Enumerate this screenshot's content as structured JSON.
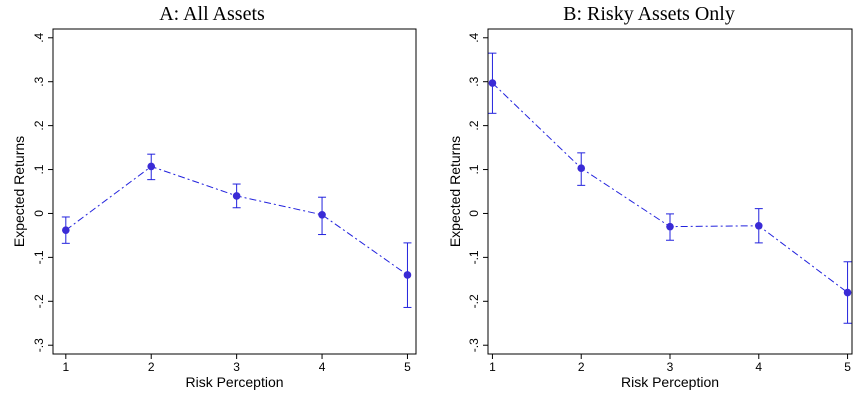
{
  "chart_data": [
    {
      "type": "line",
      "title": "A: All Assets",
      "xlabel": "Risk Perception",
      "ylabel": "Expected Returns",
      "x": [
        1,
        2,
        3,
        4,
        5
      ],
      "xticks": [
        "1",
        "2",
        "3",
        "4",
        "5"
      ],
      "yticks": [
        -0.3,
        -0.2,
        -0.1,
        0,
        0.1,
        0.2,
        0.3,
        0.4
      ],
      "ytick_labels": [
        "-.3",
        "-.2",
        "-.1",
        "0",
        ".1",
        ".2",
        ".3",
        ".4"
      ],
      "xlim": [
        0.85,
        5.1
      ],
      "ylim": [
        -0.32,
        0.42
      ],
      "series": [
        {
          "values": [
            -0.038,
            0.107,
            0.04,
            -0.003,
            -0.14
          ],
          "ci_low": [
            -0.068,
            0.077,
            0.013,
            -0.048,
            -0.214
          ],
          "ci_high": [
            -0.008,
            0.135,
            0.067,
            0.037,
            -0.067
          ]
        }
      ],
      "grid": false
    },
    {
      "type": "line",
      "title": "B: Risky Assets Only",
      "xlabel": "Risk Perception",
      "ylabel": "Expected Returns",
      "x": [
        1,
        2,
        3,
        4,
        5
      ],
      "xticks": [
        "1",
        "2",
        "3",
        "4",
        "5"
      ],
      "yticks": [
        -0.3,
        -0.2,
        -0.1,
        0,
        0.1,
        0.2,
        0.3,
        0.4
      ],
      "ytick_labels": [
        "-.3",
        "-.2",
        "-.1",
        "0",
        ".1",
        ".2",
        ".3",
        ".4"
      ],
      "xlim": [
        0.95,
        5.05
      ],
      "ylim": [
        -0.32,
        0.42
      ],
      "series": [
        {
          "values": [
            0.297,
            0.103,
            -0.03,
            -0.028,
            -0.18
          ],
          "ci_low": [
            0.228,
            0.064,
            -0.061,
            -0.067,
            -0.25
          ],
          "ci_high": [
            0.365,
            0.138,
            -0.001,
            0.011,
            -0.11
          ]
        }
      ],
      "grid": false
    }
  ],
  "colors": {
    "series": "#2222dd",
    "marker": "#3a2bd6",
    "axis": "#000000"
  }
}
